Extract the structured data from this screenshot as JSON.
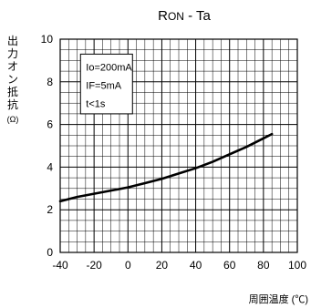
{
  "chart_data": {
    "type": "line",
    "title": "RON - Ta",
    "xlabel": "周囲温度 (℃)",
    "ylabel": "出力オン抵抗 (Ω)",
    "xlim": [
      -40,
      100
    ],
    "ylim": [
      0,
      10
    ],
    "xticks": [
      "-40",
      "-20",
      "0",
      "20",
      "40",
      "60",
      "80",
      "100"
    ],
    "yticks": [
      "0",
      "2",
      "4",
      "6",
      "8",
      "10"
    ],
    "grid": true,
    "annotations": [
      "Io=200mA",
      "IF=5mA",
      "t<1s"
    ],
    "series": [
      {
        "x": [
          -40,
          -30,
          -20,
          -10,
          0,
          10,
          20,
          30,
          40,
          50,
          60,
          70,
          80,
          85
        ],
        "values": [
          2.4,
          2.6,
          2.75,
          2.9,
          3.05,
          3.25,
          3.45,
          3.7,
          3.95,
          4.25,
          4.6,
          4.95,
          5.35,
          5.55
        ],
        "color": "#000000"
      }
    ]
  }
}
